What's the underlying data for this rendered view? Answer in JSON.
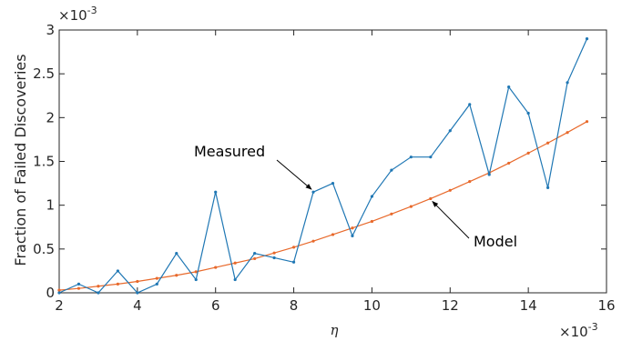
{
  "chart_data": {
    "type": "line",
    "title": "",
    "xlabel": "η",
    "ylabel": "Fraction of Failed Discoveries",
    "x_multiplier": "×10",
    "x_exponent": "-3",
    "y_multiplier": "×10",
    "y_exponent": "-3",
    "xlim": [
      2,
      16
    ],
    "ylim": [
      0,
      3
    ],
    "xticks": [
      2,
      4,
      6,
      8,
      10,
      12,
      14,
      16
    ],
    "yticks": [
      0,
      0.5,
      1,
      1.5,
      2,
      2.5,
      3
    ],
    "xtick_labels": [
      "2",
      "4",
      "6",
      "8",
      "10",
      "12",
      "14",
      "16"
    ],
    "ytick_labels": [
      "0",
      "0.5",
      "1",
      "1.5",
      "2",
      "2.5",
      "3"
    ],
    "grid": false,
    "x": [
      2,
      2.5,
      3,
      3.5,
      4,
      4.5,
      5,
      5.5,
      6,
      6.5,
      7,
      7.5,
      8,
      8.5,
      9,
      9.5,
      10,
      10.5,
      11,
      11.5,
      12,
      12.5,
      13,
      13.5,
      14,
      14.5,
      15,
      15.5
    ],
    "series": [
      {
        "name": "Measured",
        "color": "#1f77b4",
        "values": [
          0.0,
          0.1,
          0.0,
          0.25,
          0.0,
          0.1,
          0.45,
          0.15,
          1.15,
          0.15,
          0.45,
          0.4,
          0.35,
          1.15,
          1.25,
          0.65,
          1.1,
          1.4,
          1.55,
          1.55,
          1.85,
          2.15,
          1.35,
          2.35,
          2.05,
          1.2,
          2.4,
          2.9
        ]
      },
      {
        "name": "Model",
        "color": "#e8692b",
        "values": [
          0.03,
          0.05,
          0.075,
          0.1,
          0.13,
          0.165,
          0.2,
          0.24,
          0.29,
          0.34,
          0.39,
          0.455,
          0.52,
          0.59,
          0.665,
          0.74,
          0.815,
          0.9,
          0.985,
          1.075,
          1.17,
          1.27,
          1.37,
          1.48,
          1.595,
          1.71,
          1.83,
          1.955
        ]
      }
    ],
    "annotations": [
      {
        "text": "Measured",
        "series": 0,
        "point_index": 13
      },
      {
        "text": "Model",
        "series": 1,
        "point_index": 19
      }
    ]
  }
}
